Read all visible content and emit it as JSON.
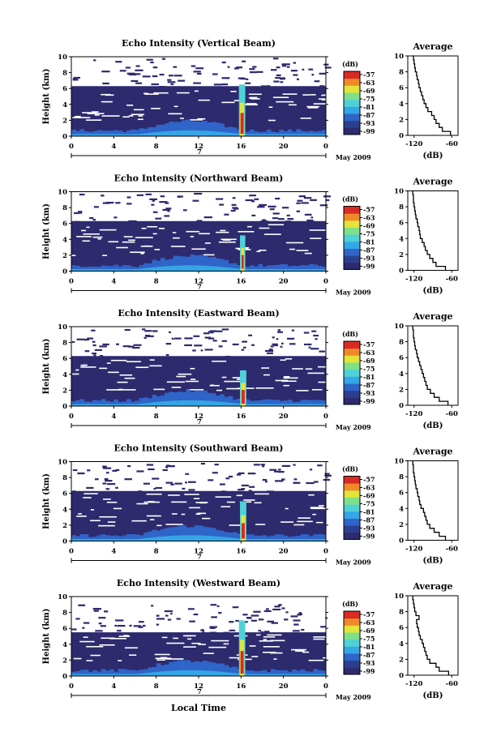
{
  "chart_data": [
    {
      "type": "heatmap",
      "title": "Echo Intensity (Vertical Beam)",
      "ylabel": "Height (km)",
      "x_ticks": [
        "0",
        "4",
        "8",
        "12",
        "16",
        "20",
        "0"
      ],
      "y_ticks": [
        "0",
        "2",
        "4",
        "6",
        "8",
        "10"
      ],
      "xlim": [
        0,
        24
      ],
      "ylim": [
        0,
        10
      ],
      "date_day": "7",
      "date_label": "May 2009",
      "colorbar": {
        "unit": "(dB)",
        "ticks": [
          "-57",
          "-63",
          "-69",
          "-75",
          "-81",
          "-87",
          "-93",
          "-99"
        ]
      },
      "profile": {
        "title": "Average",
        "xlabel": "(dB)",
        "x_ticks": [
          "-120",
          "-60"
        ],
        "y_ticks": [
          "0",
          "2",
          "4",
          "6",
          "8",
          "10"
        ],
        "height_km": [
          0,
          0.5,
          1,
          1.5,
          2,
          2.5,
          3,
          3.5,
          4,
          4.5,
          5,
          5.5,
          6,
          6.5,
          7,
          7.5,
          8,
          8.5,
          9,
          9.5,
          10
        ],
        "db": [
          -62,
          -75,
          -80,
          -85,
          -88,
          -92,
          -98,
          -101,
          -104,
          -106,
          -108,
          -110,
          -112,
          -113,
          -115,
          -116,
          -118,
          -119,
          -120,
          -121,
          -122
        ]
      },
      "spike": {
        "x_start": 15.8,
        "x_end": 16.4,
        "top_km": 6.5
      }
    },
    {
      "type": "heatmap",
      "title": "Echo Intensity (Northward Beam)",
      "ylabel": "Height (km)",
      "x_ticks": [
        "0",
        "4",
        "8",
        "12",
        "16",
        "20",
        "0"
      ],
      "y_ticks": [
        "0",
        "2",
        "4",
        "6",
        "8",
        "10"
      ],
      "xlim": [
        0,
        24
      ],
      "ylim": [
        0,
        10
      ],
      "date_day": "7",
      "date_label": "May 2009",
      "colorbar": {
        "unit": "(dB)",
        "ticks": [
          "-57",
          "-63",
          "-69",
          "-75",
          "-81",
          "-87",
          "-93",
          "-99"
        ]
      },
      "profile": {
        "title": "Average",
        "xlabel": "(dB)",
        "x_ticks": [
          "-120",
          "-60"
        ],
        "y_ticks": [
          "0",
          "2",
          "4",
          "6",
          "8",
          "10"
        ],
        "height_km": [
          0,
          0.5,
          1,
          1.5,
          2,
          2.5,
          3,
          3.5,
          4,
          4.5,
          5,
          5.5,
          6,
          6.5,
          7,
          7.5,
          8,
          8.5,
          9,
          9.5,
          10
        ],
        "db": [
          -70,
          -85,
          -90,
          -95,
          -99,
          -102,
          -104,
          -107,
          -110,
          -111,
          -112,
          -114,
          -115,
          -117,
          -118,
          -119,
          -120,
          -121,
          -121,
          -122,
          -122
        ]
      },
      "spike": {
        "x_start": 15.9,
        "x_end": 16.4,
        "top_km": 4.5
      }
    },
    {
      "type": "heatmap",
      "title": "Echo Intensity (Eastward Beam)",
      "ylabel": "Height (km)",
      "x_ticks": [
        "0",
        "4",
        "8",
        "12",
        "16",
        "20",
        "0"
      ],
      "y_ticks": [
        "0",
        "2",
        "4",
        "6",
        "8",
        "10"
      ],
      "xlim": [
        0,
        24
      ],
      "ylim": [
        0,
        10
      ],
      "date_day": "7",
      "date_label": "May 2009",
      "colorbar": {
        "unit": "(dB)",
        "ticks": [
          "-57",
          "-63",
          "-69",
          "-75",
          "-81",
          "-87",
          "-93",
          "-99"
        ]
      },
      "profile": {
        "title": "Average",
        "xlabel": "(dB)",
        "x_ticks": [
          "-120",
          "-60"
        ],
        "y_ticks": [
          "0",
          "2",
          "4",
          "6",
          "8",
          "10"
        ],
        "height_km": [
          0,
          0.5,
          1,
          1.5,
          2,
          2.5,
          3,
          3.5,
          4,
          4.5,
          5,
          5.5,
          6,
          6.5,
          7,
          7.5,
          8,
          8.5,
          9,
          9.5,
          10
        ],
        "db": [
          -66,
          -80,
          -88,
          -94,
          -99,
          -101,
          -103,
          -105,
          -107,
          -109,
          -111,
          -113,
          -115,
          -116,
          -118,
          -119,
          -120,
          -121,
          -121,
          -122,
          -122
        ]
      },
      "spike": {
        "x_start": 15.9,
        "x_end": 16.5,
        "top_km": 4.5
      }
    },
    {
      "type": "heatmap",
      "title": "Echo Intensity (Southward Beam)",
      "ylabel": "Height (km)",
      "x_ticks": [
        "0",
        "4",
        "8",
        "12",
        "16",
        "20",
        "0"
      ],
      "y_ticks": [
        "0",
        "2",
        "4",
        "6",
        "8",
        "10"
      ],
      "xlim": [
        0,
        24
      ],
      "ylim": [
        0,
        10
      ],
      "date_day": "7",
      "date_label": "May 2009",
      "colorbar": {
        "unit": "(dB)",
        "ticks": [
          "-57",
          "-63",
          "-69",
          "-75",
          "-81",
          "-87",
          "-93",
          "-99"
        ]
      },
      "profile": {
        "title": "Average",
        "xlabel": "(dB)",
        "x_ticks": [
          "-120",
          "-60"
        ],
        "y_ticks": [
          "0",
          "2",
          "4",
          "6",
          "8",
          "10"
        ],
        "height_km": [
          0,
          0.5,
          1,
          1.5,
          2,
          2.5,
          3,
          3.5,
          4,
          4.5,
          5,
          5.5,
          6,
          6.5,
          7,
          7.5,
          8,
          8.5,
          9,
          9.5,
          10
        ],
        "db": [
          -70,
          -80,
          -88,
          -95,
          -99,
          -101,
          -103,
          -105,
          -109,
          -111,
          -112,
          -114,
          -115,
          -117,
          -118,
          -119,
          -120,
          -121,
          -121,
          -122,
          -122
        ]
      },
      "spike": {
        "x_start": 15.9,
        "x_end": 16.5,
        "top_km": 5.0
      }
    },
    {
      "type": "heatmap",
      "title": "Echo Intensity (Westward Beam)",
      "ylabel": "Height (km)",
      "x_ticks": [
        "0",
        "4",
        "8",
        "12",
        "16",
        "20",
        "0"
      ],
      "y_ticks": [
        "0",
        "2",
        "4",
        "6",
        "8",
        "10"
      ],
      "xlim": [
        0,
        24
      ],
      "ylim": [
        0,
        10
      ],
      "date_day": "7",
      "date_label": "May 2009",
      "colorbar": {
        "unit": "(dB)",
        "ticks": [
          "-57",
          "-63",
          "-69",
          "-75",
          "-81",
          "-87",
          "-93",
          "-99"
        ]
      },
      "profile": {
        "title": "Average",
        "xlabel": "(dB)",
        "x_ticks": [
          "-120",
          "-60"
        ],
        "y_ticks": [
          "0",
          "2",
          "4",
          "6",
          "8",
          "10"
        ],
        "height_km": [
          0,
          0.5,
          1,
          1.5,
          2,
          2.5,
          3,
          3.5,
          4,
          4.5,
          5,
          5.5,
          6,
          6.5,
          7,
          7.5,
          8,
          8.5,
          9,
          9.5,
          10
        ],
        "db": [
          -65,
          -80,
          -85,
          -95,
          -99,
          -101,
          -103,
          -105,
          -107,
          -110,
          -112,
          -113,
          -115,
          -116,
          -112,
          -117,
          -119,
          -120,
          -121,
          -122,
          -122
        ]
      },
      "spike": {
        "x_start": 15.8,
        "x_end": 16.4,
        "top_km": 7.0
      }
    }
  ],
  "common": {
    "xlabel": "Local Time",
    "colormap": [
      "#2d2a6e",
      "#2c3f8e",
      "#2f64c8",
      "#35a6e6",
      "#4fd1d7",
      "#7fe08a",
      "#e2e43a",
      "#f08a28",
      "#d92a24"
    ]
  }
}
